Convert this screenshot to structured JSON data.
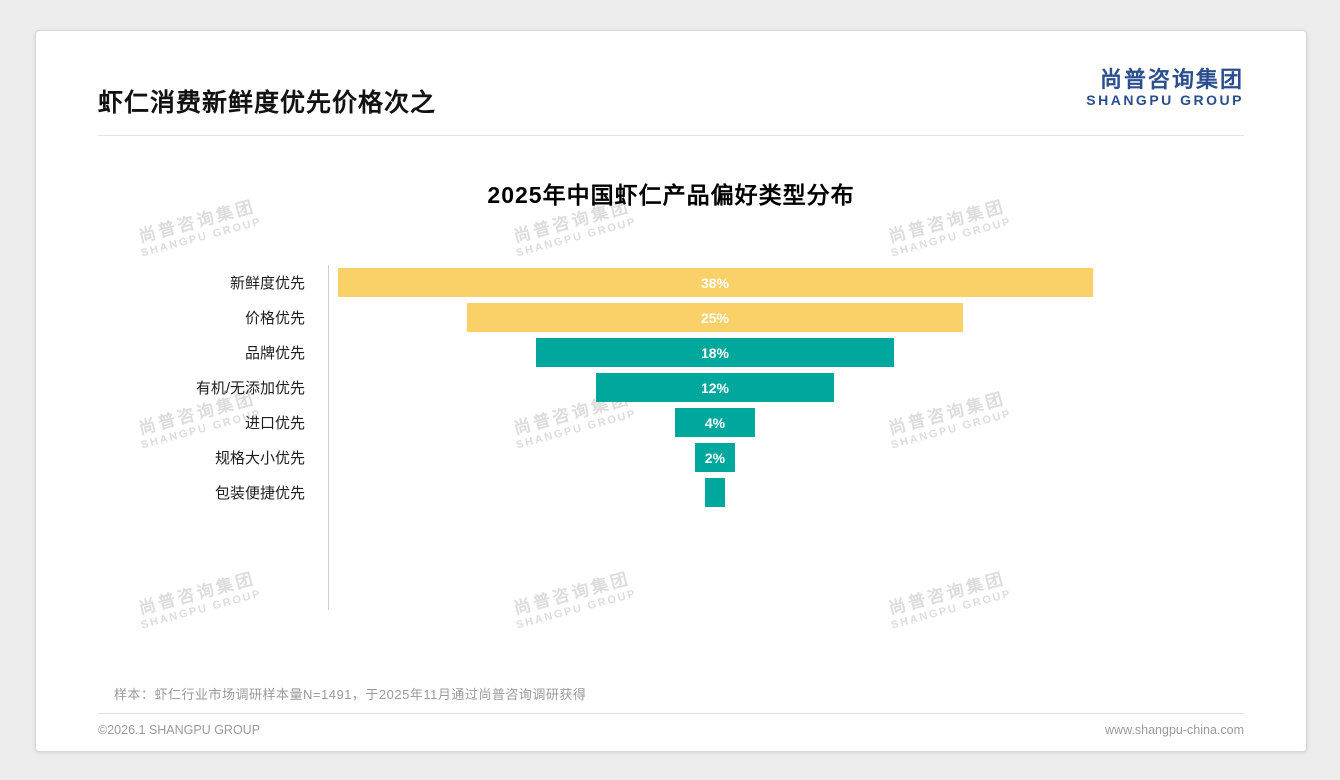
{
  "page": {
    "title": "虾仁消费新鲜度优先价格次之",
    "logo": {
      "cn": "尚普咨询集团",
      "en": "SHANGPU GROUP"
    },
    "watermark": {
      "cn": "尚普咨询集团",
      "en": "SHANGPU GROUP"
    },
    "footnote": "样本：虾仁行业市场调研样本量N=1491，于2025年11月通过尚普咨询调研获得",
    "footer_left": "©2026.1 SHANGPU GROUP",
    "footer_right": "www.shangpu-china.com"
  },
  "chart_data": {
    "type": "bar",
    "subtype": "horizontal-centered-funnel",
    "title": "2025年中国虾仁产品偏好类型分布",
    "categories": [
      "新鲜度优先",
      "价格优先",
      "品牌优先",
      "有机/无添加优先",
      "进口优先",
      "规格大小优先",
      "包装便捷优先"
    ],
    "values": [
      38,
      25,
      18,
      12,
      4,
      2,
      1
    ],
    "labels": [
      "38%",
      "25%",
      "18%",
      "12%",
      "4%",
      "2%",
      ""
    ],
    "bar_colors": [
      "#FAD169",
      "#FAD169",
      "#00A79D",
      "#00A79D",
      "#00A79D",
      "#00A79D",
      "#00A79D"
    ],
    "unit": "%",
    "xlabel": "",
    "ylabel": "",
    "legend": false,
    "grid": false
  },
  "colors": {
    "accent_yellow": "#FAD169",
    "accent_teal": "#00A79D",
    "logo_blue": "#2B4E8F",
    "value_label_text": "#FFFFFF",
    "muted_text": "#9A9A9A"
  }
}
